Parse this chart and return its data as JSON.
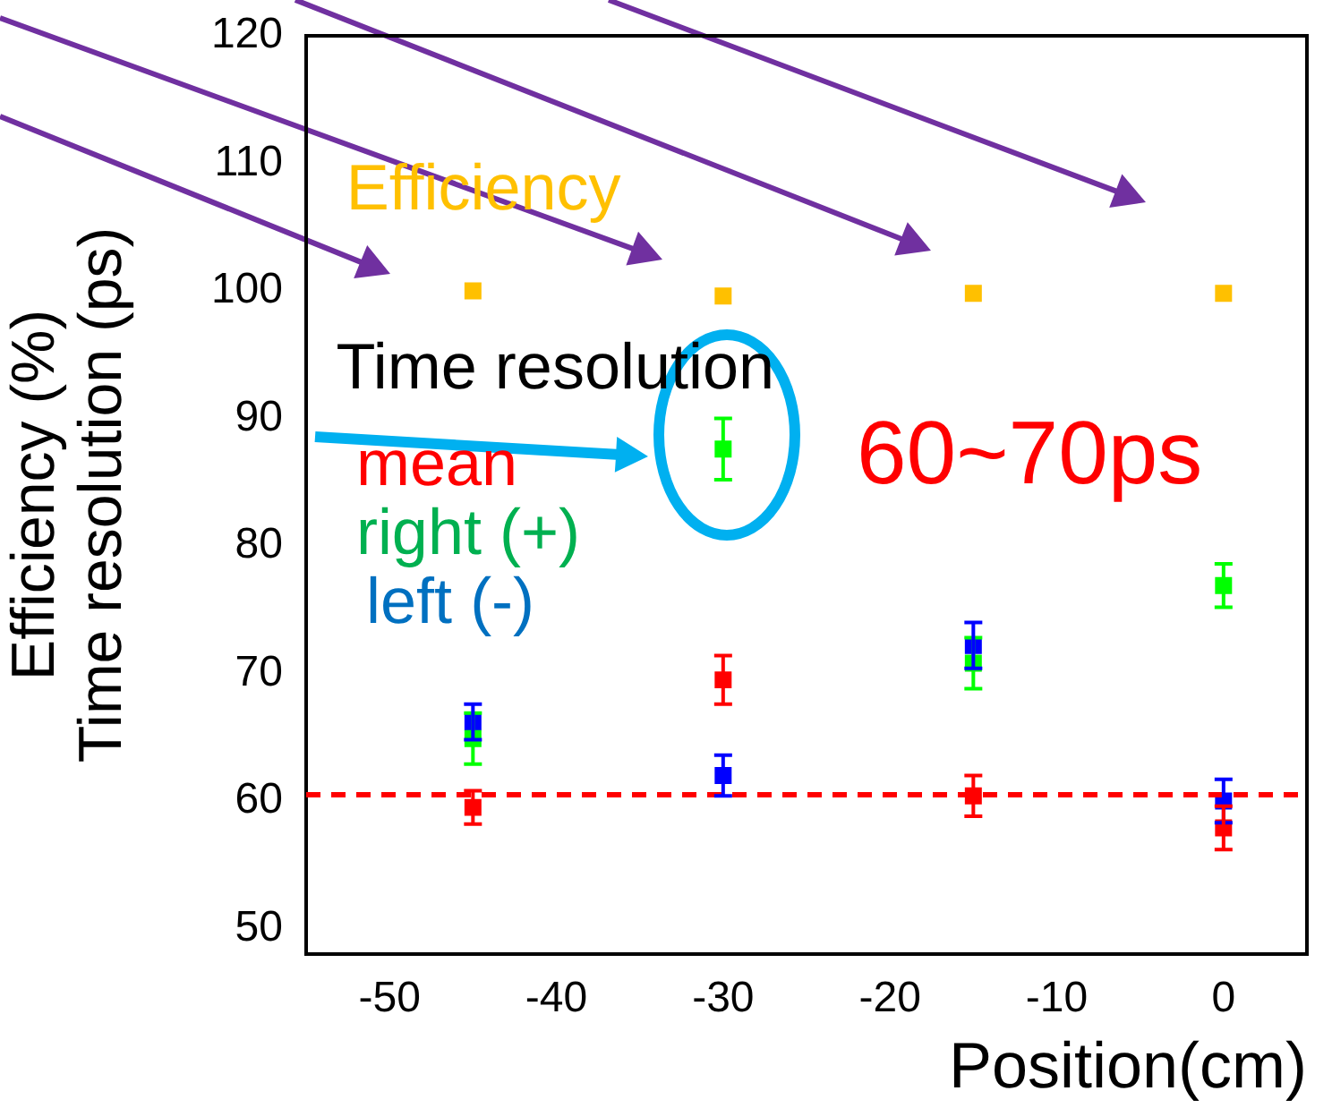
{
  "chart_data": {
    "type": "scatter",
    "xlabel": "Position(cm)",
    "ylabel": "Efficiency (%)\nTime resolution (ps)",
    "x": [
      -45,
      -30,
      -15,
      0
    ],
    "series": [
      {
        "name": "Efficiency",
        "color": "#ffc000",
        "values": [
          100,
          99.6,
          99.8,
          99.8
        ]
      },
      {
        "name": "right (+)",
        "color": "#00ff00",
        "values": [
          64.9,
          87.6,
          70.8,
          76.9
        ],
        "errors": [
          2,
          2.4,
          2,
          1.7
        ]
      },
      {
        "name": "left (-)",
        "color": "#0000ff",
        "values": [
          66.2,
          62,
          72.2,
          60
        ],
        "errors": [
          1.4,
          1.6,
          1.8,
          1.7
        ]
      },
      {
        "name": "mean",
        "color": "#ff0000",
        "values": [
          59.5,
          69.5,
          60.4,
          57.9
        ],
        "errors": [
          1.3,
          1.9,
          1.6,
          1.7
        ]
      }
    ],
    "ref_lines": [
      {
        "axis": "y",
        "value": 60.5,
        "color": "#ff0000",
        "line_style": "dashed"
      }
    ],
    "annotations": [
      "Time resolution",
      "60~70ps"
    ],
    "xlim": [
      -55,
      5
    ],
    "xticks": [
      -50,
      -40,
      -30,
      -20,
      -10,
      0
    ],
    "ylim": [
      48,
      120
    ],
    "yticks": [
      50,
      60,
      70,
      80,
      90,
      100,
      110,
      120
    ],
    "marker": "square",
    "grid": false
  }
}
